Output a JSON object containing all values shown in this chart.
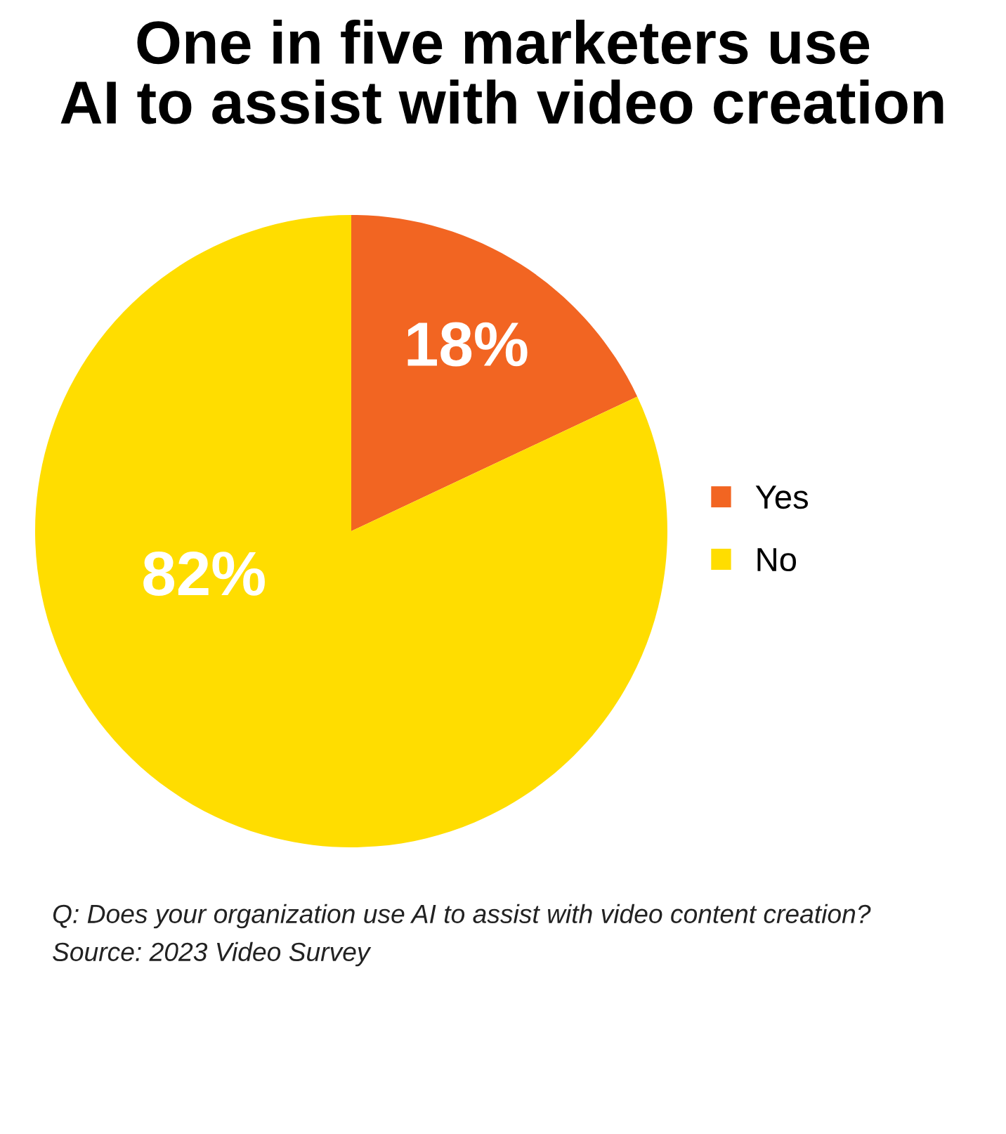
{
  "chart_data": {
    "type": "pie",
    "title": "One in five marketers use\nAI to assist with video creation",
    "categories": [
      "Yes",
      "No"
    ],
    "values": [
      18,
      82
    ],
    "colors": [
      "#f26522",
      "#ffdd00"
    ],
    "value_labels": [
      "18%",
      "82%"
    ],
    "legend": "right",
    "annotations": [
      "Q: Does your organization use AI to assist with video content creation?",
      "Source: 2023 Video Survey"
    ]
  }
}
